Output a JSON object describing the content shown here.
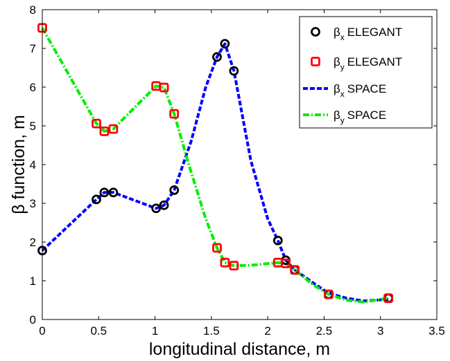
{
  "chart_data": {
    "type": "line",
    "xlabel": "longitudinal distance, m",
    "ylabel": "β function, m",
    "xlim": [
      0,
      3.5
    ],
    "ylim": [
      0,
      8
    ],
    "xticks": [
      "0",
      "0.5",
      "1",
      "1.5",
      "2",
      "2.5",
      "3",
      "3.5"
    ],
    "yticks": [
      "0",
      "1",
      "2",
      "3",
      "4",
      "5",
      "6",
      "7",
      "8"
    ],
    "grid": false,
    "legend_position": "top-right",
    "series": [
      {
        "name": "βx ELEGANT",
        "legend": {
          "greek": "β",
          "sub": "x",
          "text": "ELEGANT"
        },
        "style": "markers",
        "marker": "circle",
        "color": "#000000",
        "x": [
          0,
          0.48,
          0.55,
          0.63,
          1.01,
          1.08,
          1.17,
          1.55,
          1.62,
          1.7,
          2.09,
          2.16,
          2.24,
          2.54,
          3.07
        ],
        "y": [
          1.78,
          3.1,
          3.28,
          3.28,
          2.87,
          2.95,
          3.34,
          6.78,
          7.12,
          6.42,
          2.04,
          1.53,
          1.28,
          0.65,
          0.55
        ]
      },
      {
        "name": "βy ELEGANT",
        "legend": {
          "greek": "β",
          "sub": "y",
          "text": "ELEGANT"
        },
        "style": "markers",
        "marker": "square",
        "color": "#ff0000",
        "x": [
          0,
          0.48,
          0.55,
          0.63,
          1.01,
          1.08,
          1.17,
          1.55,
          1.62,
          1.7,
          2.09,
          2.16,
          2.24,
          2.54,
          3.07
        ],
        "y": [
          7.53,
          5.06,
          4.86,
          4.92,
          6.03,
          5.99,
          5.31,
          1.85,
          1.47,
          1.39,
          1.47,
          1.45,
          1.28,
          0.65,
          0.55
        ]
      },
      {
        "name": "βx SPACE",
        "legend": {
          "greek": "β",
          "sub": "x",
          "text": "SPACE"
        },
        "style": "dashed",
        "color": "#0000ff",
        "x": [
          0,
          0.48,
          0.55,
          0.63,
          1.01,
          1.08,
          1.17,
          1.32,
          1.45,
          1.55,
          1.62,
          1.7,
          1.85,
          2.0,
          2.09,
          2.16,
          2.24,
          2.4,
          2.54,
          2.7,
          2.85,
          3.07
        ],
        "y": [
          1.78,
          3.1,
          3.28,
          3.28,
          2.87,
          2.95,
          3.34,
          4.6,
          6.0,
          6.78,
          7.12,
          6.42,
          4.1,
          2.6,
          2.04,
          1.53,
          1.28,
          0.95,
          0.68,
          0.55,
          0.48,
          0.52
        ]
      },
      {
        "name": "βy SPACE",
        "legend": {
          "greek": "β",
          "sub": "y",
          "text": "SPACE"
        },
        "style": "dash-dot",
        "color": "#00ee00",
        "x": [
          0,
          0.48,
          0.55,
          0.63,
          1.01,
          1.08,
          1.17,
          1.3,
          1.45,
          1.55,
          1.62,
          1.7,
          1.85,
          2.09,
          2.16,
          2.24,
          2.4,
          2.54,
          2.7,
          2.85,
          3.07
        ],
        "y": [
          7.53,
          5.06,
          4.86,
          4.92,
          6.03,
          5.99,
          5.31,
          4.0,
          2.6,
          1.85,
          1.47,
          1.39,
          1.4,
          1.47,
          1.45,
          1.28,
          0.9,
          0.65,
          0.5,
          0.45,
          0.55
        ]
      }
    ]
  }
}
